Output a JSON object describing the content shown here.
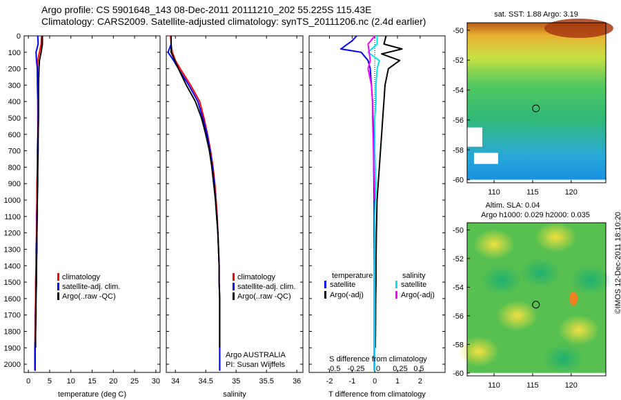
{
  "header": {
    "line1": "Argo profile: CS 5901648_143 08-Dec-2011 20111210_202 55.225S 115.43E",
    "line2": "Climatology: CARS2009. Satellite-adjusted climatology: synTS_20111206.nc (2.4d earlier)"
  },
  "colors": {
    "climatology": "#ff0000",
    "satellite": "#0000ff",
    "argo": "#000000",
    "satellite_s": "#00e5ee",
    "argo_s": "#ff00ff"
  },
  "yaxis_ticks": [
    "0",
    "100",
    "200",
    "300",
    "400",
    "500",
    "600",
    "700",
    "800",
    "900",
    "1000",
    "1100",
    "1200",
    "1300",
    "1400",
    "1500",
    "1600",
    "1700",
    "1800",
    "1900",
    "2000"
  ],
  "panels": {
    "temperature": {
      "xlabel": "temperature (deg C)",
      "xticks": [
        "0",
        "5",
        "10",
        "15",
        "20",
        "25",
        "30"
      ],
      "legend": [
        "climatology",
        "satellite-adj. clim.",
        "Argo(..raw -QC)"
      ]
    },
    "salinity": {
      "xlabel": "salinity",
      "xticks": [
        "34",
        "34.5",
        "35",
        "35.5",
        "36"
      ],
      "legend": [
        "climatology",
        "satellite-adj. clim.",
        "Argo(..raw -QC)"
      ],
      "note1": "Argo AUSTRALIA",
      "note2": "PI: Susan Wijffels"
    },
    "difference": {
      "xlabel": "T difference from climatology",
      "xticks": [
        "-2",
        "-1",
        "0",
        "1",
        "2"
      ],
      "top_label": "S difference from climatology",
      "top_ticks": [
        "-0.5",
        "-0.25",
        "0",
        "0.25",
        "0.5"
      ],
      "legend_t_title": "temperature",
      "legend_t": [
        "satellite",
        "Argo(-adj)"
      ],
      "legend_s_title": "salinity",
      "legend_s": [
        "satellite",
        "Argo(-adj)"
      ]
    }
  },
  "maps": {
    "sst": {
      "title": "sat. SST: 1.88 Argo: 3.19",
      "yticks": [
        "-50",
        "-52",
        "-54",
        "-56",
        "-58",
        "-60"
      ],
      "xticks": [
        "110",
        "115",
        "120"
      ]
    },
    "sla": {
      "title1": "Altim. SLA: 0.04",
      "title2": "Argo h1000: 0.029 h2000: 0.035",
      "yticks": [
        "-50",
        "-52",
        "-54",
        "-56",
        "-58",
        "-60"
      ],
      "xticks": [
        "110",
        "115",
        "120"
      ]
    }
  },
  "stamp": "©IMOS 12-Dec-2011 18:10:20",
  "chart_data": [
    {
      "type": "line",
      "title": "",
      "xlabel": "temperature (deg C)",
      "ylabel": "",
      "xlim": [
        -1,
        31
      ],
      "ylim": [
        2050,
        0
      ],
      "series": [
        {
          "name": "climatology",
          "color": "#ff0000",
          "x": [
            3.1,
            3.0,
            2.6,
            2.2,
            2.1,
            2.1,
            2.2,
            2.2,
            2.2,
            2.1,
            2.1,
            2.0,
            2.0,
            1.9,
            1.9,
            1.8,
            1.8,
            1.7,
            1.7,
            1.6,
            1.6,
            1.5,
            1.5
          ],
          "y": [
            0,
            50,
            100,
            150,
            200,
            300,
            400,
            500,
            600,
            700,
            800,
            900,
            1000,
            1100,
            1200,
            1300,
            1400,
            1500,
            1600,
            1700,
            1800,
            1900,
            2040
          ]
        },
        {
          "name": "satellite-adj. clim.",
          "color": "#0000ff",
          "x": [
            2.2,
            2.3,
            1.8,
            1.9,
            2.1,
            2.2,
            2.3,
            2.3,
            2.3,
            2.2,
            2.2,
            2.1,
            2.1,
            2.0,
            2.0,
            1.9,
            1.9,
            1.8,
            1.8,
            1.7,
            1.7,
            1.6,
            1.6
          ],
          "y": [
            0,
            50,
            100,
            150,
            200,
            300,
            400,
            500,
            600,
            700,
            800,
            900,
            1000,
            1100,
            1200,
            1300,
            1400,
            1500,
            1600,
            1700,
            1800,
            1900,
            2040
          ]
        },
        {
          "name": "Argo(..raw -QC)",
          "color": "#000000",
          "x": [
            3.3,
            3.3,
            3.0,
            2.6,
            2.5,
            2.4,
            2.4,
            2.4,
            2.3,
            2.3,
            2.2,
            2.2,
            2.1,
            2.1,
            2.0,
            2.0,
            1.9,
            1.9,
            1.8,
            1.8,
            1.7,
            1.7
          ],
          "y": [
            0,
            50,
            100,
            150,
            200,
            300,
            400,
            500,
            600,
            700,
            800,
            900,
            1000,
            1100,
            1200,
            1300,
            1400,
            1500,
            1600,
            1700,
            1800,
            1900
          ]
        }
      ]
    },
    {
      "type": "line",
      "title": "",
      "xlabel": "salinity",
      "ylabel": "",
      "xlim": [
        33.85,
        36.1
      ],
      "ylim": [
        2050,
        0
      ],
      "series": [
        {
          "name": "climatology",
          "color": "#ff0000",
          "x": [
            33.92,
            33.93,
            33.95,
            34.0,
            34.08,
            34.25,
            34.4,
            34.47,
            34.53,
            34.58,
            34.62,
            34.65,
            34.67,
            34.69,
            34.7,
            34.71,
            34.72,
            34.72,
            34.73,
            34.73,
            34.73,
            34.73,
            34.73
          ],
          "y": [
            0,
            50,
            100,
            150,
            200,
            300,
            400,
            500,
            600,
            700,
            800,
            900,
            1000,
            1100,
            1200,
            1300,
            1400,
            1500,
            1600,
            1700,
            1800,
            1900,
            2040
          ]
        },
        {
          "name": "satellite-adj. clim.",
          "color": "#0000ff",
          "x": [
            33.93,
            33.93,
            33.88,
            33.97,
            34.05,
            34.22,
            34.37,
            34.45,
            34.52,
            34.57,
            34.61,
            34.64,
            34.66,
            34.68,
            34.7,
            34.71,
            34.72,
            34.72,
            34.73,
            34.73,
            34.73,
            34.73,
            34.73
          ],
          "y": [
            0,
            50,
            100,
            150,
            200,
            300,
            400,
            500,
            600,
            700,
            800,
            900,
            1000,
            1100,
            1200,
            1300,
            1400,
            1500,
            1600,
            1700,
            1800,
            1900,
            2040
          ]
        },
        {
          "name": "Argo(..raw -QC)",
          "color": "#000000",
          "x": [
            33.93,
            33.93,
            33.93,
            33.99,
            34.05,
            34.18,
            34.33,
            34.43,
            34.5,
            34.56,
            34.6,
            34.63,
            34.66,
            34.68,
            34.7,
            34.71,
            34.72,
            34.72,
            34.73,
            34.73,
            34.73,
            34.73
          ],
          "y": [
            0,
            50,
            100,
            150,
            200,
            300,
            400,
            500,
            600,
            700,
            800,
            900,
            1000,
            1100,
            1200,
            1300,
            1400,
            1500,
            1600,
            1700,
            1800,
            1900
          ]
        }
      ]
    },
    {
      "type": "line",
      "title": "",
      "xlabel": "T difference from climatology",
      "ylabel": "",
      "xlim": [
        -2.9,
        3.1
      ],
      "ylim": [
        2050,
        0
      ],
      "series": [
        {
          "name": "temperature satellite",
          "color": "#0000ff",
          "x": [
            -0.8,
            -1.0,
            -1.5,
            -0.6,
            -0.3,
            -0.2,
            -0.15,
            -0.1,
            -0.08,
            -0.05,
            -0.05,
            -0.05,
            -0.04,
            -0.03,
            -0.03,
            -0.02,
            -0.02,
            -0.02,
            -0.02,
            -0.02,
            -0.02
          ],
          "y": [
            0,
            30,
            80,
            100,
            150,
            200,
            300,
            400,
            500,
            600,
            700,
            800,
            900,
            1000,
            1200,
            1400,
            1500,
            1600,
            1800,
            1900,
            2040
          ]
        },
        {
          "name": "temperature Argo(-adj)",
          "color": "#000000",
          "x": [
            0.5,
            0.4,
            1.2,
            0.3,
            1.1,
            0.6,
            0.45,
            0.4,
            0.35,
            0.3,
            0.25,
            0.2,
            0.15,
            0.1,
            0.07,
            0.05,
            0.05,
            0.04,
            0.03,
            0.02
          ],
          "y": [
            0,
            50,
            80,
            110,
            150,
            200,
            300,
            400,
            500,
            600,
            700,
            800,
            900,
            1000,
            1200,
            1400,
            1500,
            1600,
            1800,
            1900
          ]
        },
        {
          "name": "salinity satellite",
          "color": "#00e5ee",
          "x": [
            0.1,
            0.1,
            -0.3,
            0.2,
            0.1,
            0.05,
            0.05,
            0.0,
            0.0,
            0.0,
            0.02,
            0.05,
            0.02,
            0.0,
            0.0,
            0.0,
            0.0,
            0.0,
            0.0,
            0.0
          ],
          "y": [
            0,
            50,
            100,
            150,
            200,
            300,
            400,
            500,
            600,
            700,
            800,
            900,
            1000,
            1100,
            1200,
            1400,
            1500,
            1600,
            1800,
            2040
          ]
        },
        {
          "name": "salinity Argo(-adj)",
          "color": "#ff00ff",
          "x": [
            0.0,
            -0.3,
            -0.2,
            -0.3,
            -0.15,
            -0.1,
            -0.1,
            -0.08,
            -0.06,
            -0.05,
            -0.02,
            0.0
          ],
          "y": [
            0,
            50,
            150,
            200,
            300,
            400,
            500,
            600,
            700,
            800,
            900,
            1000
          ]
        }
      ]
    }
  ]
}
